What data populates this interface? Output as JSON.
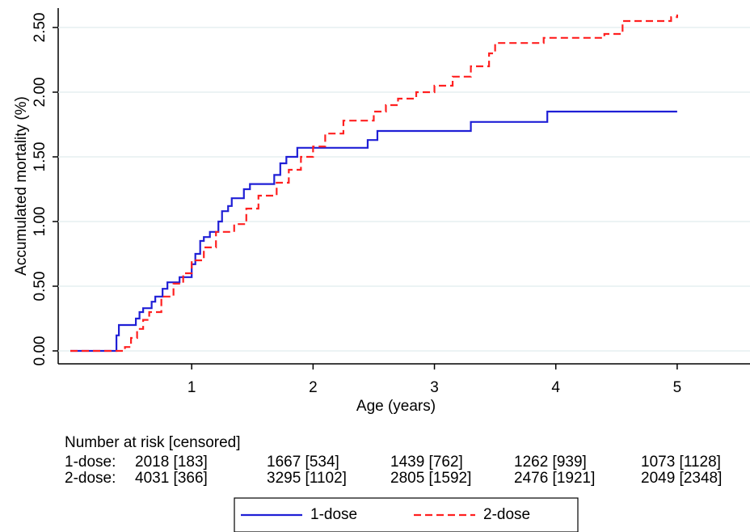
{
  "chart_data": {
    "type": "step",
    "x_label": "Age (years)",
    "y_label": "Accumulated mortality (%)",
    "xlim": [
      -0.1,
      5.6
    ],
    "ylim": [
      -0.1,
      2.65
    ],
    "xticks": [
      1,
      2,
      3,
      4,
      5
    ],
    "yticks": [
      {
        "value": 0,
        "label": "0.00"
      },
      {
        "value": 0.5,
        "label": "0.50"
      },
      {
        "value": 1,
        "label": "1.00"
      },
      {
        "value": 1.5,
        "label": "1.50"
      },
      {
        "value": 2,
        "label": "2.00"
      },
      {
        "value": 2.5,
        "label": "2.50"
      }
    ],
    "grid": true,
    "series": [
      {
        "name": "1-dose",
        "color": "#1f1fd6",
        "dash": false,
        "x": [
          0,
          0.38,
          0.4,
          0.54,
          0.57,
          0.6,
          0.67,
          0.7,
          0.76,
          0.8,
          0.9,
          1.0,
          1.03,
          1.07,
          1.1,
          1.15,
          1.22,
          1.25,
          1.3,
          1.33,
          1.43,
          1.48,
          1.68,
          1.73,
          1.78,
          1.87,
          2.45,
          2.53,
          3.3,
          3.93,
          5.0
        ],
        "values": [
          0,
          0.12,
          0.2,
          0.25,
          0.3,
          0.33,
          0.38,
          0.42,
          0.48,
          0.53,
          0.57,
          0.67,
          0.75,
          0.85,
          0.88,
          0.92,
          1.0,
          1.08,
          1.12,
          1.18,
          1.25,
          1.29,
          1.36,
          1.45,
          1.5,
          1.57,
          1.63,
          1.7,
          1.77,
          1.85,
          1.85
        ]
      },
      {
        "name": "2-dose",
        "color": "#ff2020",
        "dash": true,
        "x": [
          0,
          0.45,
          0.5,
          0.55,
          0.6,
          0.65,
          0.75,
          0.85,
          0.93,
          1.0,
          1.1,
          1.2,
          1.35,
          1.45,
          1.55,
          1.7,
          1.8,
          1.9,
          2.0,
          2.1,
          2.25,
          2.5,
          2.6,
          2.7,
          2.85,
          3.0,
          3.15,
          3.3,
          3.45,
          3.5,
          3.9,
          4.4,
          4.55,
          4.95,
          5.0
        ],
        "values": [
          0,
          0.03,
          0.1,
          0.17,
          0.24,
          0.3,
          0.42,
          0.52,
          0.6,
          0.7,
          0.8,
          0.92,
          0.98,
          1.1,
          1.2,
          1.3,
          1.4,
          1.5,
          1.58,
          1.68,
          1.78,
          1.85,
          1.9,
          1.95,
          2.0,
          2.05,
          2.12,
          2.2,
          2.3,
          2.38,
          2.42,
          2.45,
          2.55,
          2.58,
          2.6
        ]
      }
    ],
    "risk_table": {
      "title": "Number at risk [censored]",
      "rows": [
        {
          "label": "1-dose:",
          "cells": [
            "2018 [183]",
            "1667 [534]",
            "1439 [762]",
            "1262 [939]",
            "1073 [1128]"
          ]
        },
        {
          "label": "2-dose:",
          "cells": [
            "4031 [366]",
            "3295 [1102]",
            "2805 [1592]",
            "2476 [1921]",
            "2049 [2348]"
          ]
        }
      ]
    }
  }
}
